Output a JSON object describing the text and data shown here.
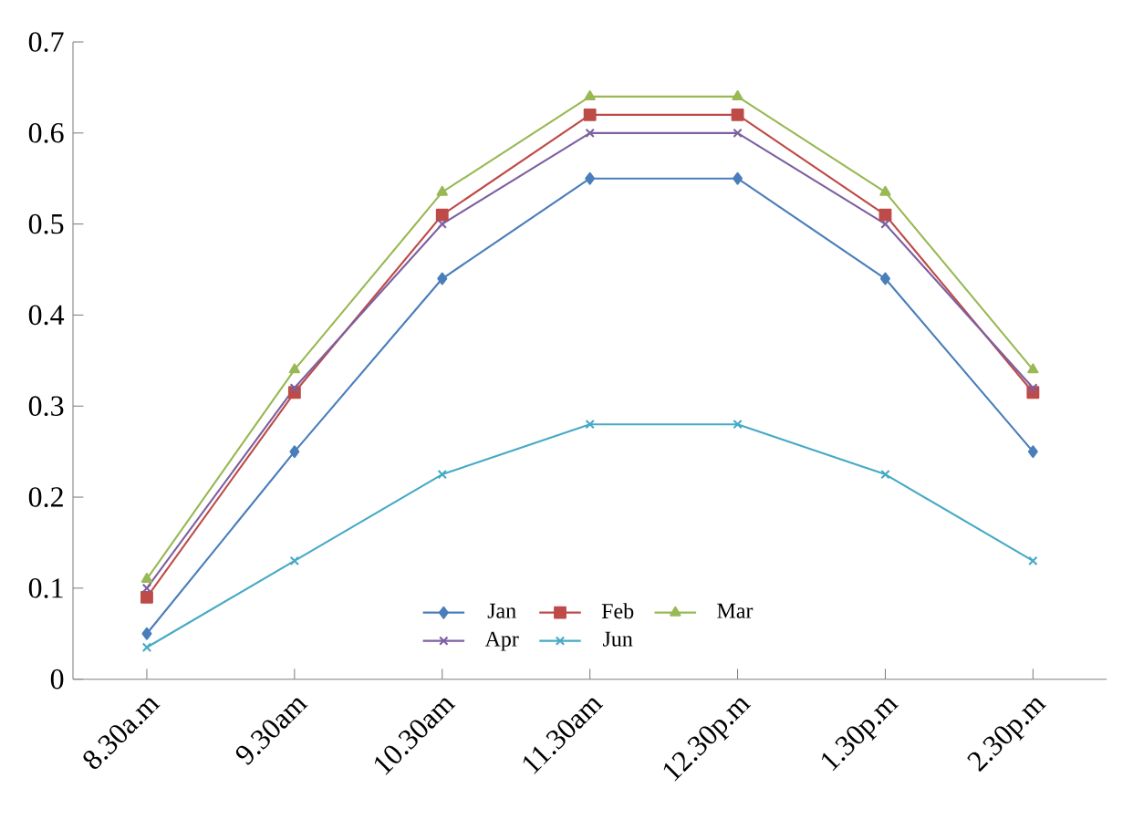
{
  "chart_data": {
    "type": "line",
    "categories": [
      "8.30a.m",
      "9.30am",
      "10.30am",
      "11.30am",
      "12.30p.m",
      "1.30p.m",
      "2.30p.m"
    ],
    "series": [
      {
        "name": "Jan",
        "color": "#4a7ebb",
        "marker": "diamond",
        "values": [
          0.05,
          0.25,
          0.44,
          0.55,
          0.55,
          0.44,
          0.25
        ]
      },
      {
        "name": "Feb",
        "color": "#be4b48",
        "marker": "square",
        "values": [
          0.09,
          0.315,
          0.51,
          0.62,
          0.62,
          0.51,
          0.315
        ]
      },
      {
        "name": "Mar",
        "color": "#98b954",
        "marker": "triangle",
        "values": [
          0.11,
          0.34,
          0.535,
          0.64,
          0.64,
          0.535,
          0.34
        ]
      },
      {
        "name": "Apr",
        "color": "#7d60a0",
        "marker": "cross",
        "values": [
          0.1,
          0.32,
          0.5,
          0.6,
          0.6,
          0.5,
          0.32
        ]
      },
      {
        "name": "Jun",
        "color": "#46aac5",
        "marker": "cross",
        "values": [
          0.035,
          0.13,
          0.225,
          0.28,
          0.28,
          0.225,
          0.13
        ]
      }
    ],
    "ylim": [
      0,
      0.7
    ],
    "yticks": [
      0,
      0.1,
      0.2,
      0.3,
      0.4,
      0.5,
      0.6,
      0.7
    ],
    "legend": "bottom",
    "grid": false,
    "line_style": "solid"
  }
}
